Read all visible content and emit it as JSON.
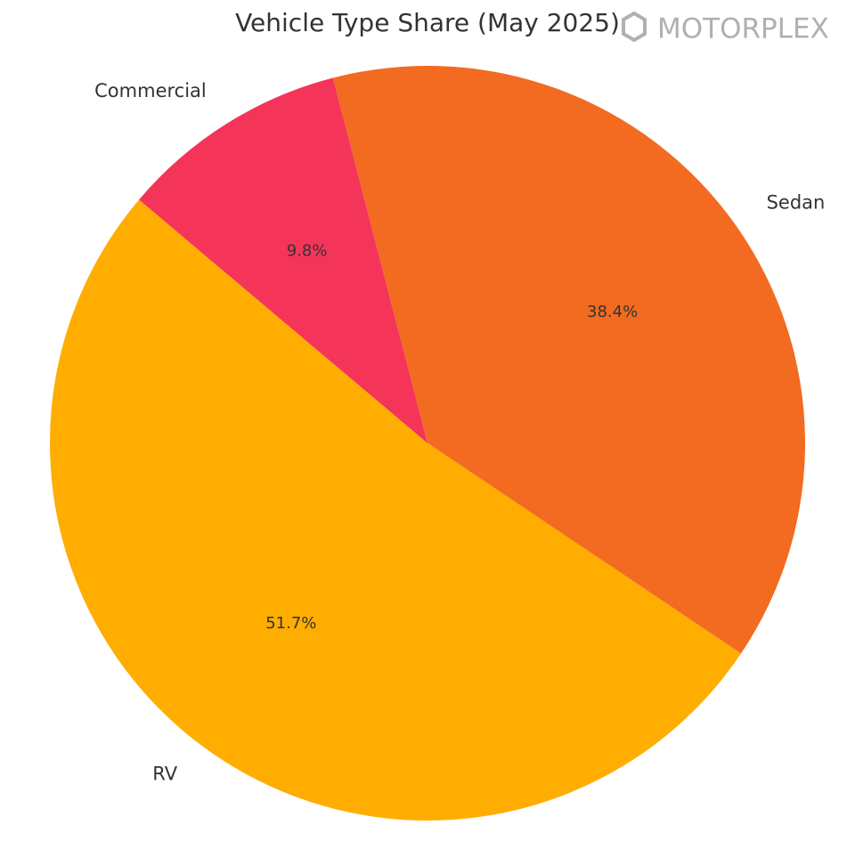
{
  "chart_data": {
    "type": "pie",
    "title": "Vehicle Type Share (May 2025)",
    "categories": [
      "Sedan",
      "RV",
      "Commercial"
    ],
    "values": [
      38.4,
      51.7,
      9.8
    ],
    "value_labels": [
      "38.4%",
      "51.7%",
      "9.8%"
    ],
    "colors": [
      "#f26b21",
      "#ffad00",
      "#f5345a"
    ],
    "watermark": "MOTORPLEX"
  }
}
